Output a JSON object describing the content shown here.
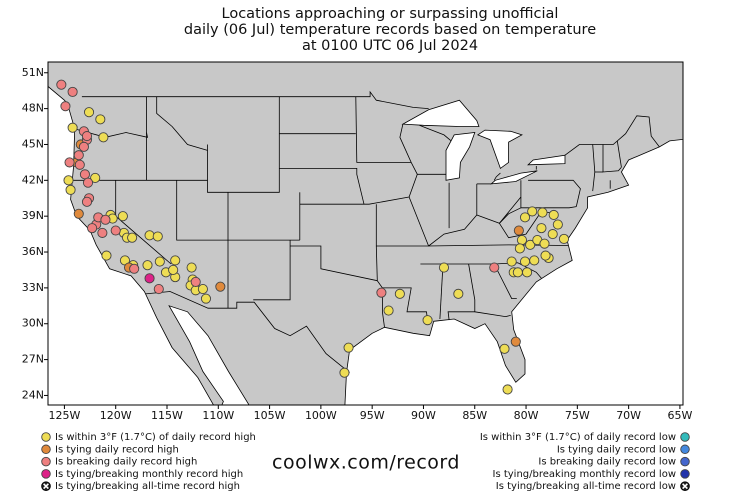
{
  "chart_data": {
    "type": "map",
    "title": [
      "Locations approaching or surpassing unofficial",
      "daily (06 Jul) temperature records based on temperature",
      "at 0100 UTC 06 Jul 2024"
    ],
    "footer": "coolwx.com/record",
    "xlim": [
      -126.6,
      -64.7
    ],
    "ylim": [
      23.2,
      51.9
    ],
    "xticks": [
      {
        "value": -125,
        "label": "125W"
      },
      {
        "value": -120,
        "label": "120W"
      },
      {
        "value": -115,
        "label": "115W"
      },
      {
        "value": -110,
        "label": "110W"
      },
      {
        "value": -105,
        "label": "105W"
      },
      {
        "value": -100,
        "label": "100W"
      },
      {
        "value": -95,
        "label": "95W"
      },
      {
        "value": -90,
        "label": "90W"
      },
      {
        "value": -85,
        "label": "85W"
      },
      {
        "value": -80,
        "label": "80W"
      },
      {
        "value": -75,
        "label": "75W"
      },
      {
        "value": -70,
        "label": "70W"
      },
      {
        "value": -65,
        "label": "65W"
      }
    ],
    "yticks": [
      {
        "value": 51,
        "label": "51N"
      },
      {
        "value": 48,
        "label": "48N"
      },
      {
        "value": 45,
        "label": "45N"
      },
      {
        "value": 42,
        "label": "42N"
      },
      {
        "value": 39,
        "label": "39N"
      },
      {
        "value": 36,
        "label": "36N"
      },
      {
        "value": 33,
        "label": "33N"
      },
      {
        "value": 30,
        "label": "30N"
      },
      {
        "value": 27,
        "label": "27N"
      },
      {
        "value": 24,
        "label": "24N"
      }
    ],
    "series": [
      {
        "name": "Is within 3°F (1.7°C) of daily record high",
        "color": "#eedd55",
        "lon": [
          -122.6,
          -124.2,
          -124.6,
          -124.4,
          -122.0,
          -121.5,
          -120.5,
          -119.3,
          -120.3,
          -120.9,
          -119.2,
          -118.9,
          -118.4,
          -119.1,
          -116.7,
          -115.9,
          -118.3,
          -116.9,
          -115.7,
          -115.1,
          -114.2,
          -114.2,
          -114.4,
          -112.5,
          -112.7,
          -112.2,
          -111.2,
          -111.5,
          -112.6,
          -80.1,
          -79.4,
          -78.4,
          -77.3,
          -76.9,
          -80.4,
          -79.6,
          -78.9,
          -78.5,
          -78.2,
          -77.4,
          -76.3,
          -80.6,
          -81.4,
          -80.1,
          -79.2,
          -77.8,
          -78.1,
          -81.2,
          -80.8,
          -79.9,
          -88.0,
          -86.6,
          -92.3,
          -93.4,
          -89.6,
          -97.3,
          -97.7,
          -82.1,
          -81.8,
          -121.2
        ],
        "lat": [
          47.7,
          46.4,
          42.0,
          41.2,
          42.2,
          47.1,
          39.1,
          39.0,
          38.8,
          35.7,
          37.6,
          37.2,
          37.2,
          35.3,
          37.4,
          37.3,
          34.9,
          34.9,
          35.2,
          34.3,
          35.3,
          33.9,
          34.5,
          33.7,
          33.2,
          32.8,
          32.1,
          32.9,
          34.7,
          38.9,
          39.4,
          39.3,
          39.1,
          38.3,
          37.0,
          36.6,
          37.0,
          38.0,
          36.7,
          37.5,
          37.1,
          36.3,
          35.2,
          35.2,
          35.3,
          35.5,
          35.7,
          34.3,
          34.3,
          34.3,
          34.7,
          32.5,
          32.5,
          31.1,
          30.3,
          28.0,
          25.9,
          27.9,
          24.5,
          45.6
        ]
      },
      {
        "name": "Is tying daily record high",
        "color": "#e08a3c",
        "lon": [
          -123.4,
          -123.8,
          -123.6,
          -118.7,
          -109.8,
          -80.7,
          -81.0
        ],
        "lat": [
          45.0,
          43.5,
          39.2,
          34.7,
          33.1,
          37.8,
          28.5
        ]
      },
      {
        "name": "Is breaking daily record high",
        "color": "#ee8080",
        "lon": [
          -125.3,
          -124.9,
          -124.2,
          -123.1,
          -122.8,
          -122.8,
          -123.1,
          -123.6,
          -124.5,
          -123.5,
          -123.0,
          -122.7,
          -122.6,
          -122.8,
          -121.9,
          -121.7,
          -121.0,
          -122.3,
          -121.3,
          -120.0,
          -115.8,
          -118.2,
          -112.2,
          -94.1,
          -83.1
        ],
        "lat": [
          50.0,
          48.2,
          49.4,
          46.1,
          45.4,
          45.7,
          44.8,
          44.1,
          43.5,
          43.3,
          42.5,
          41.8,
          40.5,
          40.2,
          38.3,
          38.9,
          38.7,
          38.0,
          37.6,
          37.8,
          32.9,
          34.6,
          33.5,
          32.6,
          34.7
        ]
      },
      {
        "name": "Is tying/breaking monthly record high",
        "color": "#dd2288",
        "lon": [
          -116.7
        ],
        "lat": [
          33.8
        ]
      },
      {
        "name": "Is tying/breaking all-time record high",
        "color": "#222222",
        "marker": "circle-x",
        "lon": [],
        "lat": []
      },
      {
        "name": "Is within 3°F (1.7°C) of daily record low",
        "color": "#33bbbb",
        "lon": [],
        "lat": []
      },
      {
        "name": "Is tying daily record low",
        "color": "#4488dd",
        "lon": [],
        "lat": []
      },
      {
        "name": "Is breaking daily record low",
        "color": "#4466cc",
        "lon": [],
        "lat": []
      },
      {
        "name": "Is tying/breaking monthly record low",
        "color": "#2233aa",
        "lon": [],
        "lat": []
      },
      {
        "name": "Is tying/breaking all-time record low",
        "color": "#222222",
        "marker": "circle-x",
        "lon": [],
        "lat": []
      }
    ]
  }
}
